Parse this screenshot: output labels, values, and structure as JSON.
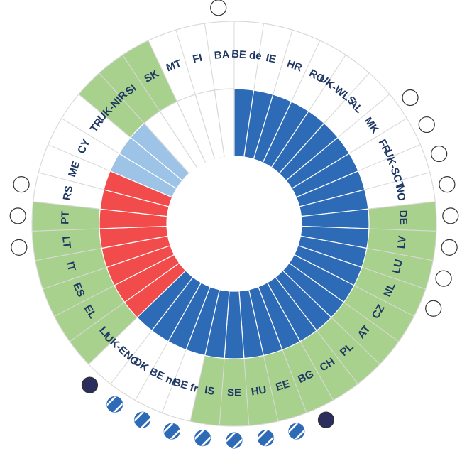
{
  "chart_data": {
    "type": "radial",
    "title": "",
    "countries": [
      {
        "code": "BE de",
        "outer": "white",
        "inner": "blue",
        "marker": "none"
      },
      {
        "code": "IE",
        "outer": "white",
        "inner": "blue",
        "marker": "none"
      },
      {
        "code": "HR",
        "outer": "white",
        "inner": "blue",
        "marker": "none"
      },
      {
        "code": "RO",
        "outer": "white",
        "inner": "blue",
        "marker": "none"
      },
      {
        "code": "UK-WLS",
        "outer": "white",
        "inner": "blue",
        "marker": "none"
      },
      {
        "code": "AL",
        "outer": "white",
        "inner": "blue",
        "marker": "none"
      },
      {
        "code": "MK",
        "outer": "white",
        "inner": "blue",
        "marker": "open"
      },
      {
        "code": "FR",
        "outer": "white",
        "inner": "blue",
        "marker": "open"
      },
      {
        "code": "UK-SCT",
        "outer": "white",
        "inner": "blue",
        "marker": "open"
      },
      {
        "code": "NO",
        "outer": "white",
        "inner": "blue",
        "marker": "open"
      },
      {
        "code": "DE",
        "outer": "green",
        "inner": "blue",
        "marker": "open"
      },
      {
        "code": "LV",
        "outer": "green",
        "inner": "blue",
        "marker": "open"
      },
      {
        "code": "LU",
        "outer": "green",
        "inner": "blue",
        "marker": "open"
      },
      {
        "code": "NL",
        "outer": "green",
        "inner": "blue",
        "marker": "open"
      },
      {
        "code": "CZ",
        "outer": "green",
        "inner": "blue",
        "marker": "none"
      },
      {
        "code": "AT",
        "outer": "green",
        "inner": "blue",
        "marker": "none"
      },
      {
        "code": "PL",
        "outer": "green",
        "inner": "blue",
        "marker": "none"
      },
      {
        "code": "CH",
        "outer": "green",
        "inner": "blue",
        "marker": "none"
      },
      {
        "code": "BG",
        "outer": "green",
        "inner": "blue",
        "marker": "filled"
      },
      {
        "code": "EE",
        "outer": "green",
        "inner": "blue",
        "marker": "striped"
      },
      {
        "code": "HU",
        "outer": "green",
        "inner": "blue",
        "marker": "striped"
      },
      {
        "code": "SE",
        "outer": "green",
        "inner": "blue",
        "marker": "striped"
      },
      {
        "code": "IS",
        "outer": "green",
        "inner": "blue",
        "marker": "striped"
      },
      {
        "code": "BE fr",
        "outer": "white",
        "inner": "blue",
        "marker": "striped"
      },
      {
        "code": "BE nl",
        "outer": "white",
        "inner": "blue",
        "marker": "striped"
      },
      {
        "code": "DK",
        "outer": "white",
        "inner": "blue",
        "marker": "striped"
      },
      {
        "code": "UK-ENG",
        "outer": "white",
        "inner": "blue",
        "marker": "filled"
      },
      {
        "code": "LI",
        "outer": "green",
        "inner": "red",
        "marker": "none"
      },
      {
        "code": "EL",
        "outer": "green",
        "inner": "red",
        "marker": "none"
      },
      {
        "code": "ES",
        "outer": "green",
        "inner": "red",
        "marker": "none"
      },
      {
        "code": "IT",
        "outer": "green",
        "inner": "red",
        "marker": "none"
      },
      {
        "code": "LT",
        "outer": "green",
        "inner": "red",
        "marker": "open"
      },
      {
        "code": "PT",
        "outer": "green",
        "inner": "red",
        "marker": "open"
      },
      {
        "code": "RS",
        "outer": "white",
        "inner": "red",
        "marker": "open"
      },
      {
        "code": "ME",
        "outer": "white",
        "inner": "red",
        "marker": "none"
      },
      {
        "code": "CY",
        "outer": "white",
        "inner": "lightblue",
        "marker": "none"
      },
      {
        "code": "TR",
        "outer": "white",
        "inner": "lightblue",
        "marker": "none"
      },
      {
        "code": "UK-NIR",
        "outer": "green",
        "inner": "lightblue",
        "marker": "none"
      },
      {
        "code": "SI",
        "outer": "green",
        "inner": "none",
        "marker": "none"
      },
      {
        "code": "SK",
        "outer": "green",
        "inner": "none",
        "marker": "none"
      },
      {
        "code": "MT",
        "outer": "white",
        "inner": "none",
        "marker": "none"
      },
      {
        "code": "FI",
        "outer": "white",
        "inner": "none",
        "marker": "none"
      },
      {
        "code": "BA",
        "outer": "white",
        "inner": "none",
        "marker": "open"
      }
    ],
    "colors": {
      "green": "#a9d18e",
      "white": "#ffffff",
      "blue": "#2e6bb7",
      "red": "#f24b4b",
      "lightblue": "#9dc3e6",
      "none": "#ffffff",
      "label": "#1f3864",
      "marker_dark": "#2b2d5c",
      "divider": "#d9d9d9"
    }
  }
}
